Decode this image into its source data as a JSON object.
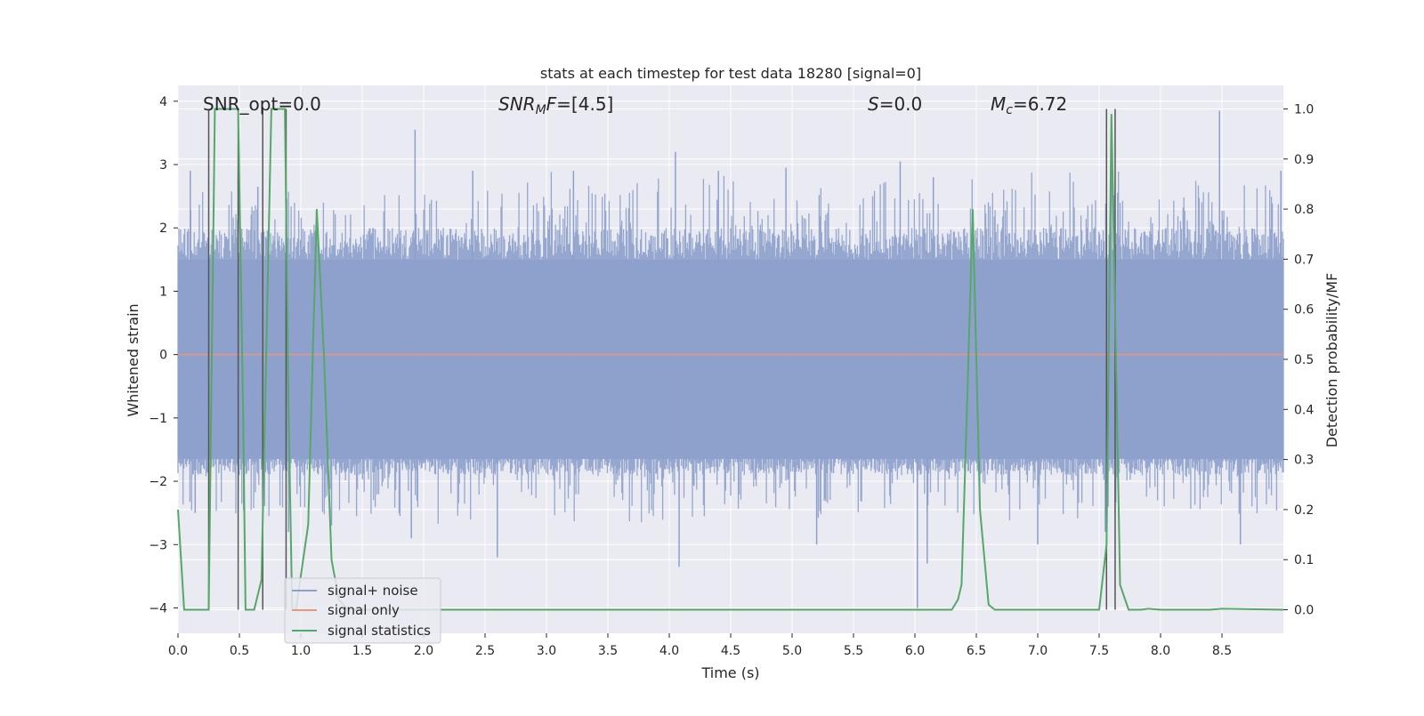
{
  "chart_data": {
    "type": "line",
    "title": "stats at each timestep for test data 18280 [signal=0]",
    "xlabel": "Time (s)",
    "ylabel": "Whitened strain",
    "y2label": "Detection probability/MF",
    "xlim": [
      0,
      9.0
    ],
    "ylim": [
      -4.4,
      4.25
    ],
    "y2lim": [
      -0.047,
      1.047
    ],
    "x_ticks": [
      0.0,
      0.5,
      1.0,
      1.5,
      2.0,
      2.5,
      3.0,
      3.5,
      4.0,
      4.5,
      5.0,
      5.5,
      6.0,
      6.5,
      7.0,
      7.5,
      8.0,
      8.5
    ],
    "x_tick_labels": [
      "0.0",
      "0.5",
      "1.0",
      "1.5",
      "2.0",
      "2.5",
      "3.0",
      "3.5",
      "4.0",
      "4.5",
      "5.0",
      "5.5",
      "6.0",
      "6.5",
      "7.0",
      "7.5",
      "8.0",
      "8.5"
    ],
    "y_ticks": [
      -4,
      -3,
      -2,
      -1,
      0,
      1,
      2,
      3,
      4
    ],
    "y_tick_labels": [
      "−4",
      "−3",
      "−2",
      "−1",
      "0",
      "1",
      "2",
      "3",
      "4"
    ],
    "y2_ticks": [
      0.0,
      0.1,
      0.2,
      0.3,
      0.4,
      0.5,
      0.6,
      0.7,
      0.8,
      0.9,
      1.0
    ],
    "y2_tick_labels": [
      "0.0",
      "0.1",
      "0.2",
      "0.3",
      "0.4",
      "0.5",
      "0.6",
      "0.7",
      "0.8",
      "0.9",
      "1.0"
    ],
    "grid": true,
    "legend_position": "lower-left",
    "annotations": {
      "snr_opt": "SNR_opt=0.0",
      "snr_mf_main": "SNR",
      "snr_mf_sub": "M",
      "snr_mf_rest": "F",
      "snr_mf_value": "=[4.5]",
      "s_label": "S",
      "s_value": "=0.0",
      "mc_label": "M",
      "mc_sub": "c",
      "mc_value": "=6.72"
    },
    "series": [
      {
        "name": "signal+ noise",
        "color": "#8da0cb",
        "axis": "left",
        "kind": "noise",
        "peaks_upper": [
          [
            0.1,
            2.9
          ],
          [
            0.49,
            2.9
          ],
          [
            0.65,
            2.65
          ],
          [
            1.93,
            3.55
          ],
          [
            2.4,
            2.9
          ],
          [
            3.22,
            2.9
          ],
          [
            4.05,
            3.2
          ],
          [
            4.4,
            2.9
          ],
          [
            4.95,
            2.95
          ],
          [
            5.88,
            3.05
          ],
          [
            6.15,
            2.8
          ],
          [
            7.6,
            3.3
          ],
          [
            8.48,
            3.85
          ],
          [
            8.98,
            2.9
          ]
        ],
        "peaks_lower": [
          [
            0.14,
            -2.5
          ],
          [
            0.9,
            -2.8
          ],
          [
            1.25,
            -2.7
          ],
          [
            1.9,
            -2.9
          ],
          [
            2.6,
            -3.2
          ],
          [
            4.08,
            -3.35
          ],
          [
            5.2,
            -3.0
          ],
          [
            6.02,
            -4.0
          ],
          [
            6.1,
            -3.3
          ],
          [
            7.0,
            -3.0
          ],
          [
            7.55,
            -2.8
          ],
          [
            8.65,
            -3.0
          ]
        ]
      },
      {
        "name": "signal only",
        "color": "#e9967a",
        "axis": "left",
        "x": [
          0.0,
          9.0
        ],
        "y": [
          0.0,
          0.0
        ]
      },
      {
        "name": "signal statistics",
        "color": "#55a868",
        "axis": "right",
        "x": [
          0.0,
          0.05,
          0.25,
          0.3,
          0.49,
          0.53,
          0.55,
          0.62,
          0.68,
          0.76,
          0.87,
          0.9,
          0.93,
          0.96,
          1.06,
          1.13,
          1.19,
          1.25,
          1.31,
          1.38,
          2.0,
          6.3,
          6.35,
          6.38,
          6.43,
          6.47,
          6.53,
          6.6,
          6.65,
          7.0,
          7.5,
          7.56,
          7.6,
          7.63,
          7.67,
          7.74,
          7.84,
          7.9,
          8.0,
          8.4,
          8.5,
          9.0
        ],
        "y": [
          0.2,
          0.0,
          0.0,
          1.0,
          1.0,
          0.4,
          0.0,
          0.0,
          0.06,
          1.0,
          1.0,
          0.4,
          0.0,
          0.0,
          0.17,
          0.8,
          0.5,
          0.1,
          0.02,
          0.0,
          0.0,
          0.0,
          0.02,
          0.05,
          0.45,
          0.8,
          0.2,
          0.01,
          0.0,
          0.0,
          0.0,
          0.13,
          0.99,
          0.6,
          0.05,
          0.0,
          0.0,
          0.002,
          0.0,
          0.0,
          0.002,
          0.0
        ]
      },
      {
        "name": "markers",
        "color": "#555555",
        "axis": "right",
        "kind": "vlines",
        "x": [
          0.25,
          0.49,
          0.69,
          0.88,
          7.56,
          7.63
        ],
        "y_top": [
          1.0,
          1.0,
          1.0,
          1.0,
          1.0,
          1.0
        ],
        "y_bottom": [
          0.0,
          0.0,
          0.0,
          0.0,
          0.0,
          0.0
        ]
      }
    ]
  }
}
